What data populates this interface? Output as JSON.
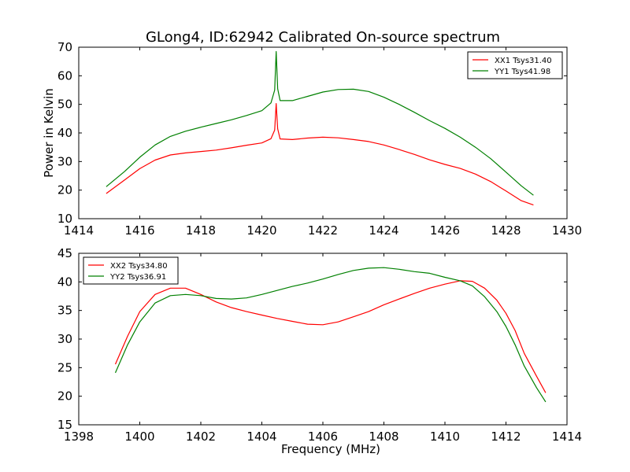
{
  "figure": {
    "title": "GLong4, ID:62942 Calibrated On-source spectrum"
  },
  "chart_data": [
    {
      "type": "line",
      "title": "GLong4, ID:62942 Calibrated On-source spectrum",
      "xlabel": "",
      "ylabel": "Power in Kelvin",
      "xlim": [
        1414,
        1430
      ],
      "ylim": [
        10,
        70
      ],
      "xticks": [
        1414,
        1416,
        1418,
        1420,
        1422,
        1424,
        1426,
        1428,
        1430
      ],
      "yticks": [
        10,
        20,
        30,
        40,
        50,
        60,
        70
      ],
      "grid": false,
      "legend_position": "top-right",
      "series": [
        {
          "name": "XX1 Tsys31.40",
          "color": "#ff0000",
          "x": [
            1414.9,
            1415.5,
            1416.0,
            1416.5,
            1417.0,
            1417.5,
            1418.0,
            1418.5,
            1419.0,
            1419.5,
            1420.0,
            1420.3,
            1420.42,
            1420.47,
            1420.52,
            1420.6,
            1421.0,
            1421.5,
            1422.0,
            1422.5,
            1423.0,
            1423.5,
            1424.0,
            1424.5,
            1425.0,
            1425.5,
            1426.0,
            1426.5,
            1427.0,
            1427.5,
            1428.0,
            1428.5,
            1428.9
          ],
          "y": [
            18.8,
            23.5,
            27.5,
            30.5,
            32.3,
            33.0,
            33.5,
            34.0,
            34.8,
            35.7,
            36.5,
            38.0,
            41.0,
            50.3,
            41.5,
            37.9,
            37.7,
            38.2,
            38.5,
            38.3,
            37.7,
            37.0,
            35.8,
            34.2,
            32.5,
            30.6,
            29.0,
            27.6,
            25.6,
            23.0,
            19.7,
            16.3,
            14.8
          ]
        },
        {
          "name": "YY1 Tsys41.98",
          "color": "#008000",
          "x": [
            1414.9,
            1415.5,
            1416.0,
            1416.5,
            1417.0,
            1417.5,
            1418.0,
            1418.5,
            1419.0,
            1419.5,
            1420.0,
            1420.3,
            1420.42,
            1420.47,
            1420.52,
            1420.6,
            1421.0,
            1421.5,
            1422.0,
            1422.5,
            1423.0,
            1423.5,
            1424.0,
            1424.5,
            1425.0,
            1425.5,
            1426.0,
            1426.5,
            1427.0,
            1427.5,
            1428.0,
            1428.5,
            1428.9
          ],
          "y": [
            21.2,
            26.5,
            31.5,
            35.8,
            38.8,
            40.6,
            42.0,
            43.3,
            44.6,
            46.1,
            47.8,
            50.5,
            55.0,
            68.5,
            55.5,
            51.3,
            51.3,
            52.8,
            54.3,
            55.2,
            55.3,
            54.5,
            52.5,
            50.0,
            47.2,
            44.3,
            41.6,
            38.5,
            35.0,
            31.0,
            26.3,
            21.5,
            18.2
          ]
        }
      ]
    },
    {
      "type": "line",
      "title": "",
      "xlabel": "Frequency (MHz)",
      "ylabel": "",
      "xlim": [
        1398,
        1414
      ],
      "ylim": [
        15,
        45
      ],
      "xticks": [
        1398,
        1400,
        1402,
        1404,
        1406,
        1408,
        1410,
        1412,
        1414
      ],
      "yticks": [
        15,
        20,
        25,
        30,
        35,
        40,
        45
      ],
      "grid": false,
      "legend_position": "top-left",
      "series": [
        {
          "name": "XX2 Tsys34.80",
          "color": "#ff0000",
          "x": [
            1399.2,
            1399.6,
            1400.0,
            1400.5,
            1401.0,
            1401.5,
            1402.0,
            1402.5,
            1403.0,
            1403.5,
            1404.0,
            1404.5,
            1405.0,
            1405.5,
            1406.0,
            1406.5,
            1407.0,
            1407.5,
            1408.0,
            1408.5,
            1409.0,
            1409.5,
            1410.0,
            1410.5,
            1410.9,
            1411.3,
            1411.7,
            1412.0,
            1412.3,
            1412.6,
            1413.0,
            1413.3
          ],
          "y": [
            25.6,
            30.5,
            34.8,
            37.8,
            38.9,
            38.9,
            37.8,
            36.5,
            35.5,
            34.8,
            34.2,
            33.6,
            33.1,
            32.6,
            32.5,
            33.0,
            33.9,
            34.8,
            36.0,
            37.0,
            38.0,
            38.9,
            39.6,
            40.2,
            40.1,
            38.9,
            36.8,
            34.5,
            31.5,
            27.5,
            23.5,
            20.6
          ]
        },
        {
          "name": "YY2 Tsys36.91",
          "color": "#008000",
          "x": [
            1399.2,
            1399.6,
            1400.0,
            1400.5,
            1401.0,
            1401.5,
            1402.0,
            1402.5,
            1403.0,
            1403.5,
            1404.0,
            1404.5,
            1405.0,
            1405.5,
            1406.0,
            1406.5,
            1407.0,
            1407.5,
            1408.0,
            1408.5,
            1409.0,
            1409.5,
            1410.0,
            1410.5,
            1410.9,
            1411.3,
            1411.7,
            1412.0,
            1412.3,
            1412.6,
            1413.0,
            1413.3
          ],
          "y": [
            24.1,
            29.0,
            33.0,
            36.3,
            37.6,
            37.8,
            37.6,
            37.1,
            37.0,
            37.2,
            37.8,
            38.5,
            39.2,
            39.8,
            40.5,
            41.3,
            42.0,
            42.4,
            42.5,
            42.2,
            41.8,
            41.5,
            40.8,
            40.2,
            39.3,
            37.4,
            34.8,
            32.2,
            29.0,
            25.3,
            21.5,
            19.0
          ]
        }
      ]
    }
  ]
}
